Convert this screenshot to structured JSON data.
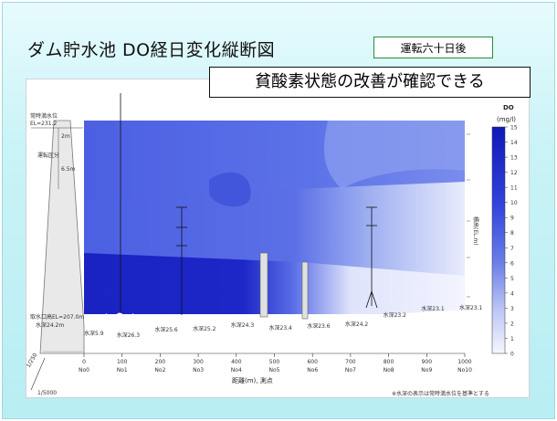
{
  "slide": {
    "title": "ダム貯水池 DO経日変化縦断図",
    "days_label": "運転六十日後",
    "callout": "貧酸素状態の改善が確認できる"
  },
  "figure": {
    "legend_title": "DO",
    "legend_unit": "(mg/l)",
    "legend_ticks": [
      "15",
      "14",
      "13",
      "12",
      "11",
      "10",
      "9",
      "8",
      "7",
      "6",
      "5",
      "4",
      "3",
      "2",
      "1",
      "0"
    ],
    "distance_ticks": [
      "0",
      "100",
      "200",
      "300",
      "400",
      "500",
      "600",
      "700",
      "800",
      "900",
      "1000"
    ],
    "station_labels": [
      "No0",
      "No1",
      "No2",
      "No3",
      "No4",
      "No5",
      "No6",
      "No7",
      "No8",
      "No9",
      "No10"
    ],
    "x_axis_label": "距離(m), 測点",
    "depth_labels": [
      "水深5.9",
      "水深26.3",
      "水深25.6",
      "水深25.2",
      "水深24.3",
      "水深23.4",
      "水深23.6",
      "水深24.2",
      "水深23.2",
      "水深23.1",
      "水深23.1"
    ],
    "left_labels": {
      "top_water": "常時満水位",
      "el": "EL=231.2",
      "depth_a": "2m",
      "band": "運転区分",
      "depth_b": "6.5m",
      "intake_el": "取水口高EL=207.0m",
      "bottom_depth": "水深24.2m"
    },
    "right_axis_label": "標高(EL.m)",
    "scale_v": "1/250",
    "scale_h": "1/5000",
    "footnote": "※水深の表示は常時満水位を基準とする"
  },
  "chart_data": {
    "type": "heatmap",
    "xlabel": "距離(m), 測点",
    "x_range": [
      0,
      1000
    ],
    "colorbar": {
      "label": "DO (mg/l)",
      "range": [
        0,
        15
      ]
    },
    "stations": [
      "No0",
      "No1",
      "No2",
      "No3",
      "No4",
      "No5",
      "No6",
      "No7",
      "No8",
      "No9",
      "No10"
    ],
    "distances": [
      0,
      100,
      200,
      300,
      400,
      500,
      600,
      700,
      800,
      900,
      1000
    ],
    "depths": [
      5.9,
      26.3,
      25.6,
      25.2,
      24.3,
      23.4,
      23.6,
      24.2,
      23.2,
      23.1,
      23.1
    ]
  },
  "colors": {
    "do_high": "#1c2bd1",
    "do_mid": "#4d63e6",
    "do_low": "#eef0ff",
    "frame": "#c9f3f7"
  }
}
